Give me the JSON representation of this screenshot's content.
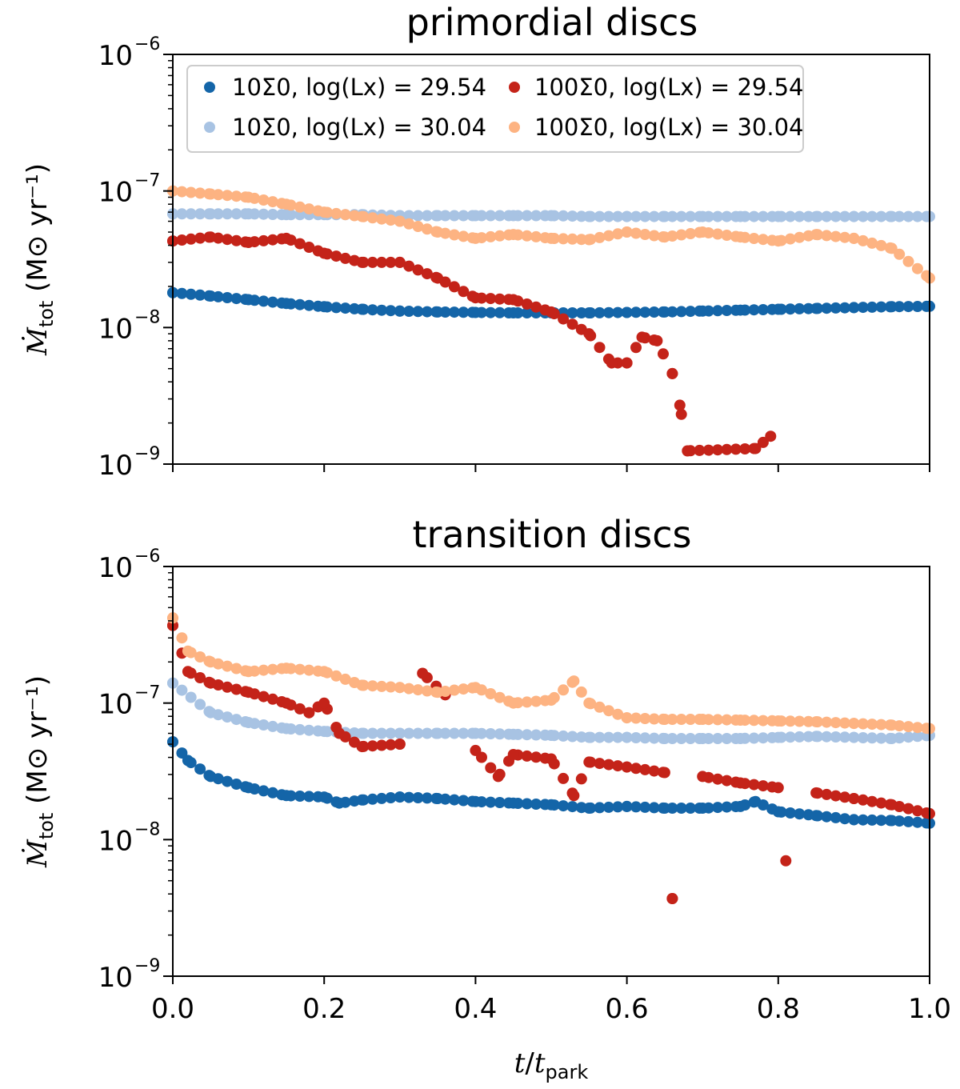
{
  "chart_data": [
    {
      "type": "scatter",
      "title": "primordial discs",
      "xlabel": "t/t_park",
      "ylabel": "Ṁ_tot (M⊙ yr⁻¹)",
      "xscale": "linear",
      "yscale": "log",
      "xlim": [
        0.0,
        1.0
      ],
      "ylim": [
        1e-09,
        1e-06
      ],
      "x_ticks": [
        "0.0",
        "0.2",
        "0.4",
        "0.6",
        "0.8",
        "1.0"
      ],
      "show_x_tick_labels": false,
      "y_ticks": [
        {
          "base": "10",
          "exp": "−9"
        },
        {
          "base": "10",
          "exp": "−8"
        },
        {
          "base": "10",
          "exp": "−7"
        },
        {
          "base": "10",
          "exp": "−6"
        }
      ],
      "legend_position": "top",
      "series": [
        {
          "name": "10Σ0, log(Lx) = 29.54",
          "color": "#1465a8",
          "x": [
            0.0,
            0.05,
            0.1,
            0.15,
            0.2,
            0.25,
            0.3,
            0.35,
            0.4,
            0.45,
            0.5,
            0.55,
            0.6,
            0.65,
            0.7,
            0.75,
            0.8,
            0.85,
            0.9,
            0.95,
            1.0
          ],
          "values": [
            1.8e-08,
            1.7e-08,
            1.6e-08,
            1.5e-08,
            1.42e-08,
            1.36e-08,
            1.32e-08,
            1.3e-08,
            1.29e-08,
            1.28e-08,
            1.28e-08,
            1.28e-08,
            1.29e-08,
            1.3e-08,
            1.32e-08,
            1.34e-08,
            1.36e-08,
            1.38e-08,
            1.4e-08,
            1.42e-08,
            1.43e-08
          ]
        },
        {
          "name": "10Σ0, log(Lx) = 30.04",
          "color": "#a8c3e3",
          "x": [
            0.0,
            0.05,
            0.1,
            0.15,
            0.2,
            0.25,
            0.3,
            0.35,
            0.4,
            0.45,
            0.5,
            0.55,
            0.6,
            0.65,
            0.7,
            0.75,
            0.8,
            0.85,
            0.9,
            0.95,
            1.0
          ],
          "values": [
            6.8e-08,
            6.8e-08,
            6.8e-08,
            6.7e-08,
            6.7e-08,
            6.7e-08,
            6.6e-08,
            6.6e-08,
            6.6e-08,
            6.6e-08,
            6.6e-08,
            6.5e-08,
            6.5e-08,
            6.5e-08,
            6.5e-08,
            6.5e-08,
            6.5e-08,
            6.5e-08,
            6.5e-08,
            6.5e-08,
            6.5e-08
          ]
        },
        {
          "name": "100Σ0, log(Lx) = 29.54",
          "color": "#c42319",
          "x": [
            0.0,
            0.05,
            0.1,
            0.15,
            0.2,
            0.25,
            0.3,
            0.35,
            0.4,
            0.45,
            0.5,
            0.55,
            0.58,
            0.6,
            0.62,
            0.64,
            0.66,
            0.67,
            0.68,
            0.77,
            0.79
          ],
          "values": [
            4.3e-08,
            4.6e-08,
            4.2e-08,
            4.5e-08,
            3.5e-08,
            3e-08,
            3e-08,
            2.3e-08,
            1.65e-08,
            1.6e-08,
            1.3e-08,
            9e-09,
            5.5e-09,
            5.5e-09,
            8.5e-09,
            8e-09,
            4.6e-09,
            2.7e-09,
            1.25e-09,
            1.3e-09,
            1.6e-09
          ]
        },
        {
          "name": "100Σ0, log(Lx) = 30.04",
          "color": "#fdb382",
          "x": [
            0.0,
            0.05,
            0.1,
            0.15,
            0.2,
            0.25,
            0.3,
            0.35,
            0.4,
            0.45,
            0.5,
            0.55,
            0.6,
            0.65,
            0.7,
            0.75,
            0.8,
            0.85,
            0.9,
            0.95,
            1.0
          ],
          "values": [
            1e-07,
            9.5e-08,
            9e-08,
            8e-08,
            7e-08,
            6.5e-08,
            6e-08,
            5e-08,
            4.5e-08,
            4.8e-08,
            4.5e-08,
            4.4e-08,
            5e-08,
            4.6e-08,
            5e-08,
            4.6e-08,
            4.3e-08,
            4.8e-08,
            4.5e-08,
            3.8e-08,
            2.3e-08
          ]
        }
      ]
    },
    {
      "type": "scatter",
      "title": "transition discs",
      "xlabel": "t/t_park",
      "ylabel": "Ṁ_tot (M⊙ yr⁻¹)",
      "xscale": "linear",
      "yscale": "log",
      "xlim": [
        0.0,
        1.0
      ],
      "ylim": [
        1e-09,
        1e-06
      ],
      "x_ticks": [
        "0.0",
        "0.2",
        "0.4",
        "0.6",
        "0.8",
        "1.0"
      ],
      "show_x_tick_labels": true,
      "y_ticks": [
        {
          "base": "10",
          "exp": "−9"
        },
        {
          "base": "10",
          "exp": "−8"
        },
        {
          "base": "10",
          "exp": "−7"
        },
        {
          "base": "10",
          "exp": "−6"
        }
      ],
      "series": [
        {
          "name": "10Σ0, log(Lx) = 29.54",
          "color": "#1465a8",
          "x": [
            0.0,
            0.02,
            0.05,
            0.1,
            0.15,
            0.2,
            0.22,
            0.25,
            0.3,
            0.35,
            0.4,
            0.45,
            0.5,
            0.55,
            0.6,
            0.65,
            0.7,
            0.75,
            0.77,
            0.8,
            0.85,
            0.9,
            0.95,
            1.0
          ],
          "values": [
            5.2e-08,
            3.8e-08,
            2.9e-08,
            2.4e-08,
            2.1e-08,
            2.05e-08,
            1.85e-08,
            1.95e-08,
            2.05e-08,
            2e-08,
            1.9e-08,
            1.85e-08,
            1.8e-08,
            1.7e-08,
            1.75e-08,
            1.7e-08,
            1.7e-08,
            1.75e-08,
            1.9e-08,
            1.6e-08,
            1.5e-08,
            1.4e-08,
            1.38e-08,
            1.32e-08
          ]
        },
        {
          "name": "10Σ0, log(Lx) = 30.04",
          "color": "#a8c3e3",
          "x": [
            0.0,
            0.05,
            0.1,
            0.15,
            0.2,
            0.25,
            0.3,
            0.35,
            0.4,
            0.45,
            0.5,
            0.55,
            0.6,
            0.65,
            0.7,
            0.75,
            0.8,
            0.85,
            0.9,
            0.95,
            1.0
          ],
          "values": [
            1.4e-07,
            8.5e-08,
            7.2e-08,
            6.5e-08,
            6.2e-08,
            6e-08,
            6e-08,
            6e-08,
            6e-08,
            5.9e-08,
            5.8e-08,
            5.6e-08,
            5.6e-08,
            5.5e-08,
            5.5e-08,
            5.5e-08,
            5.6e-08,
            5.7e-08,
            5.6e-08,
            5.5e-08,
            5.8e-08
          ]
        },
        {
          "name": "100Σ0, log(Lx) = 29.54",
          "color": "#c42319",
          "x": [
            0.0,
            0.02,
            0.05,
            0.1,
            0.15,
            0.18,
            0.2,
            0.22,
            0.25,
            0.3,
            0.33,
            0.36,
            0.4,
            0.43,
            0.45,
            0.5,
            0.53,
            0.55,
            0.6,
            0.65,
            0.66,
            0.7,
            0.75,
            0.8,
            0.81,
            0.85,
            0.9,
            0.95,
            1.0
          ],
          "values": [
            3.7e-07,
            1.7e-07,
            1.4e-07,
            1.2e-07,
            1e-07,
            8.5e-08,
            1e-07,
            6e-08,
            4.8e-08,
            5e-08,
            1.65e-07,
            1.15e-07,
            4.5e-08,
            2.9e-08,
            4.2e-08,
            3.9e-08,
            2.1e-08,
            3.7e-08,
            3.4e-08,
            3.1e-08,
            3.7e-09,
            2.9e-08,
            2.6e-08,
            2.4e-08,
            7e-09,
            2.2e-08,
            2e-08,
            1.8e-08,
            1.55e-08
          ]
        },
        {
          "name": "100Σ0, log(Lx) = 30.04",
          "color": "#fdb382",
          "x": [
            0.0,
            0.02,
            0.05,
            0.1,
            0.15,
            0.2,
            0.25,
            0.3,
            0.35,
            0.4,
            0.45,
            0.5,
            0.53,
            0.55,
            0.6,
            0.65,
            0.7,
            0.75,
            0.8,
            0.85,
            0.9,
            0.95,
            1.0
          ],
          "values": [
            4.2e-07,
            2.4e-07,
            2e-07,
            1.7e-07,
            1.8e-07,
            1.7e-07,
            1.35e-07,
            1.3e-07,
            1.2e-07,
            1.3e-07,
            1e-07,
            1.05e-07,
            1.45e-07,
            1e-07,
            7.8e-08,
            7.6e-08,
            7.6e-08,
            7.5e-08,
            7.4e-08,
            7.3e-08,
            7.1e-08,
            6.9e-08,
            6.5e-08
          ]
        }
      ]
    }
  ]
}
